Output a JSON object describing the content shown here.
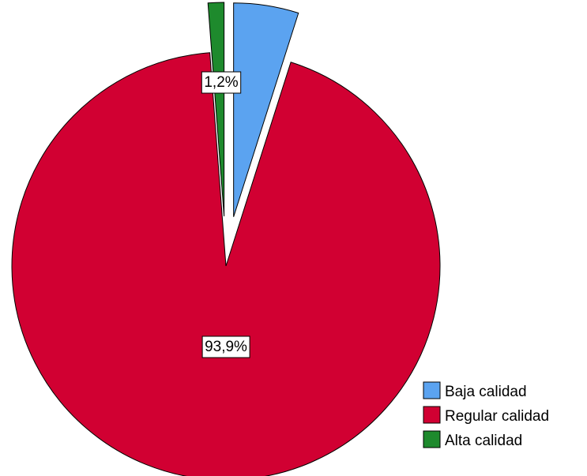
{
  "chart_data": {
    "type": "pie",
    "title": "",
    "slices": [
      {
        "label": "Baja calidad",
        "value": 4.9,
        "color": "#5ba3f0",
        "exploded": true,
        "data_label": ""
      },
      {
        "label": "Regular calidad",
        "value": 93.9,
        "color": "#d10032",
        "exploded": false,
        "data_label": "93,9%"
      },
      {
        "label": "Alta calidad",
        "value": 1.2,
        "color": "#1e8a2d",
        "exploded": true,
        "data_label": "1,2%"
      }
    ],
    "legend": {
      "placement": "bottom-right",
      "items": [
        "Baja calidad",
        "Regular calidad",
        "Alta calidad"
      ]
    },
    "start_angle_deg": 0,
    "direction": "clockwise"
  }
}
